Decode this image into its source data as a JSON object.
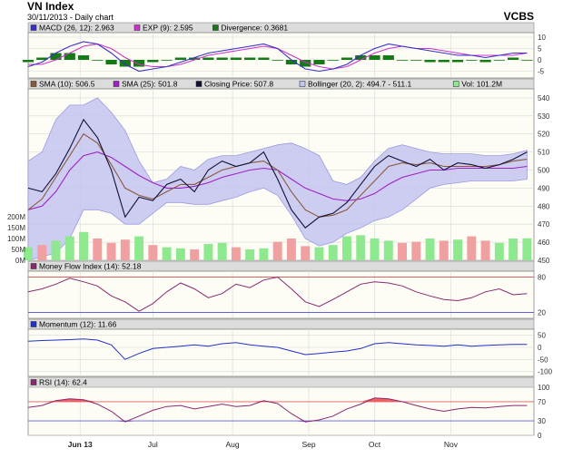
{
  "header": {
    "title": "VN Index",
    "subtitle": "30/11/2013 - Daily chart",
    "brand": "VCBS"
  },
  "colors": {
    "panel_bg": "#fdfdf5",
    "legend_bg": "#dcdcdc",
    "grid": "#d8d8d8",
    "macd": "#3a2fc8",
    "exp": "#cc33cc",
    "divergence": "#147a14",
    "sma10": "#8a5a3c",
    "sma25": "#a020c8",
    "price": "#101038",
    "bollinger_fill": "#c4c4f0",
    "bollinger_edge": "#9a9ae0",
    "vol_up": "#8ee88e",
    "vol_down": "#f0a0a0",
    "mfi": "#8a2870",
    "mom": "#2030c8",
    "rsi": "#8a2870",
    "overbought": "#e06060",
    "oversold": "#6060e0",
    "rsi_fill_up": "#f06060",
    "rsi_fill_down": "#7050e0"
  },
  "x_axis": {
    "labels": [
      {
        "text": "Jun 13",
        "day": 15,
        "bold": true
      },
      {
        "text": "Jul",
        "day": 36,
        "bold": false
      },
      {
        "text": "Aug",
        "day": 59,
        "bold": false
      },
      {
        "text": "Sep",
        "day": 81,
        "bold": false
      },
      {
        "text": "Oct",
        "day": 100,
        "bold": false
      },
      {
        "text": "Nov",
        "day": 122,
        "bold": false
      }
    ]
  },
  "chart_data": [
    {
      "type": "line",
      "id": "macd",
      "legend": [
        {
          "label": "MACD (26, 12): 2.963",
          "color": "#3a2fc8"
        },
        {
          "label": "EXP (9): 2.595",
          "color": "#cc33cc"
        },
        {
          "label": "Divergence: 0.3681",
          "color": "#147a14"
        }
      ],
      "ylim": [
        -8,
        12
      ],
      "yticks": [
        10,
        5,
        0,
        -5
      ],
      "x_days": [
        0,
        4,
        8,
        12,
        16,
        20,
        24,
        28,
        32,
        36,
        40,
        44,
        48,
        52,
        56,
        60,
        64,
        68,
        72,
        76,
        80,
        84,
        88,
        92,
        96,
        100,
        104,
        108,
        112,
        116,
        120,
        124,
        128,
        132,
        136,
        140,
        144
      ],
      "series": [
        {
          "name": "MACD (26, 12)",
          "values": [
            -3,
            -1,
            3,
            6,
            8,
            7,
            3,
            -2,
            -5,
            -4,
            -3,
            -1,
            1,
            3,
            4,
            5,
            6,
            7,
            5,
            0,
            -4,
            -5,
            -4,
            -2,
            2,
            5,
            7,
            6,
            5,
            4,
            3,
            2,
            2,
            1,
            2,
            3,
            3
          ]
        },
        {
          "name": "EXP (9)",
          "values": [
            -2,
            -2,
            0,
            3,
            6,
            7,
            5,
            1,
            -2,
            -3,
            -3,
            -2,
            0,
            2,
            3,
            4,
            5,
            6,
            5,
            2,
            -1,
            -3,
            -4,
            -3,
            0,
            3,
            5,
            6,
            5,
            5,
            4,
            3,
            2,
            2,
            2,
            2,
            3
          ]
        },
        {
          "name": "Divergence",
          "values": [
            -1,
            1,
            3,
            3,
            2,
            0,
            -2,
            -3,
            -3,
            -1,
            0,
            1,
            1,
            1,
            1,
            1,
            1,
            1,
            0,
            -2,
            -3,
            -2,
            0,
            1,
            2,
            2,
            2,
            0,
            0,
            -1,
            -1,
            -1,
            0,
            -1,
            0,
            1,
            0
          ]
        }
      ]
    },
    {
      "type": "line",
      "id": "price",
      "legend": [
        {
          "label": "SMA (10): 506.5",
          "color": "#8a5a3c"
        },
        {
          "label": "SMA (25): 501.8",
          "color": "#a020c8"
        },
        {
          "label": "Closing Price: 507.8",
          "color": "#101038"
        },
        {
          "label": "Bollinger (20, 2): 494.7 - 511.1",
          "color": "#c4c4f0"
        },
        {
          "label": "Vol: 101.2M",
          "color": "#8ee88e"
        }
      ],
      "ylim": [
        450,
        545
      ],
      "yticks": [
        540,
        530,
        520,
        510,
        500,
        490,
        480,
        470,
        460,
        450
      ],
      "volume_ticks": [
        "200M",
        "150M",
        "100M",
        "50M",
        "0M"
      ],
      "volume_max": 250,
      "x_days": [
        0,
        4,
        8,
        12,
        16,
        20,
        24,
        28,
        32,
        36,
        40,
        44,
        48,
        52,
        56,
        60,
        64,
        68,
        72,
        76,
        80,
        84,
        88,
        92,
        96,
        100,
        104,
        108,
        112,
        116,
        120,
        124,
        128,
        132,
        136,
        140,
        144
      ],
      "series": [
        {
          "name": "Closing Price",
          "values": [
            490,
            488,
            498,
            512,
            528,
            518,
            500,
            474,
            485,
            483,
            492,
            495,
            488,
            500,
            505,
            502,
            504,
            510,
            495,
            478,
            468,
            474,
            476,
            482,
            492,
            502,
            508,
            505,
            502,
            506,
            500,
            504,
            503,
            501,
            503,
            506,
            510
          ]
        },
        {
          "name": "SMA (10)",
          "values": [
            478,
            484,
            496,
            508,
            520,
            515,
            503,
            490,
            486,
            484,
            488,
            492,
            492,
            496,
            500,
            502,
            504,
            505,
            500,
            488,
            478,
            474,
            475,
            478,
            486,
            494,
            502,
            504,
            503,
            504,
            502,
            502,
            502,
            502,
            503,
            505,
            506
          ]
        },
        {
          "name": "SMA (25)",
          "values": [
            478,
            480,
            488,
            500,
            508,
            510,
            507,
            502,
            497,
            493,
            490,
            490,
            491,
            493,
            496,
            498,
            500,
            501,
            500,
            495,
            490,
            487,
            484,
            483,
            484,
            487,
            492,
            496,
            498,
            500,
            500,
            501,
            501,
            501,
            501,
            501,
            502
          ]
        },
        {
          "name": "Bollinger Upper",
          "values": [
            505,
            510,
            528,
            536,
            536,
            540,
            532,
            522,
            505,
            493,
            495,
            502,
            500,
            506,
            508,
            508,
            510,
            512,
            514,
            515,
            512,
            508,
            494,
            492,
            496,
            505,
            512,
            514,
            512,
            510,
            509,
            509,
            509,
            508,
            508,
            509,
            511
          ]
        },
        {
          "name": "Bollinger Lower",
          "values": [
            450,
            452,
            454,
            462,
            478,
            478,
            476,
            470,
            470,
            476,
            482,
            482,
            481,
            481,
            483,
            485,
            488,
            490,
            486,
            475,
            462,
            458,
            460,
            465,
            468,
            472,
            474,
            478,
            484,
            490,
            492,
            493,
            494,
            494,
            494,
            494,
            495
          ]
        },
        {
          "name": "Vol",
          "values": [
            60,
            70,
            90,
            110,
            130,
            100,
            80,
            95,
            110,
            70,
            60,
            55,
            50,
            75,
            80,
            60,
            50,
            55,
            85,
            100,
            65,
            60,
            70,
            110,
            115,
            100,
            90,
            80,
            85,
            100,
            90,
            95,
            110,
            90,
            80,
            100,
            101
          ]
        }
      ]
    },
    {
      "type": "line",
      "id": "mfi",
      "legend": [
        {
          "label": "Money Flow Index (14): 52.18",
          "color": "#8a2870"
        }
      ],
      "ylim": [
        10,
        90
      ],
      "yticks": [
        80,
        20
      ],
      "ref_lines": [
        80,
        20
      ],
      "x_days": [
        0,
        4,
        8,
        12,
        16,
        20,
        24,
        28,
        32,
        36,
        40,
        44,
        48,
        52,
        56,
        60,
        64,
        68,
        72,
        76,
        80,
        84,
        88,
        92,
        96,
        100,
        104,
        108,
        112,
        116,
        120,
        124,
        128,
        132,
        136,
        140,
        144
      ],
      "series": [
        {
          "name": "Money Flow Index (14)",
          "values": [
            55,
            60,
            68,
            78,
            72,
            65,
            48,
            38,
            22,
            35,
            55,
            70,
            60,
            45,
            52,
            68,
            62,
            75,
            80,
            60,
            38,
            30,
            42,
            55,
            68,
            72,
            70,
            65,
            55,
            48,
            42,
            40,
            45,
            55,
            60,
            50,
            52
          ]
        }
      ]
    },
    {
      "type": "line",
      "id": "momentum",
      "legend": [
        {
          "label": "Momentum (12): 11.66",
          "color": "#2030c8"
        }
      ],
      "ylim": [
        -120,
        75
      ],
      "yticks": [
        50,
        0,
        -50,
        -100
      ],
      "x_days": [
        0,
        4,
        8,
        12,
        16,
        20,
        24,
        28,
        32,
        36,
        40,
        44,
        48,
        52,
        56,
        60,
        64,
        68,
        72,
        76,
        80,
        84,
        88,
        92,
        96,
        100,
        104,
        108,
        112,
        116,
        120,
        124,
        128,
        132,
        136,
        140,
        144
      ],
      "series": [
        {
          "name": "Momentum (12)",
          "values": [
            25,
            28,
            30,
            32,
            35,
            30,
            10,
            -50,
            -25,
            -5,
            0,
            5,
            10,
            5,
            15,
            20,
            10,
            5,
            0,
            -15,
            -30,
            -25,
            -20,
            -15,
            -5,
            15,
            20,
            15,
            10,
            8,
            5,
            10,
            5,
            8,
            10,
            12,
            12
          ]
        }
      ]
    },
    {
      "type": "line",
      "id": "rsi",
      "legend": [
        {
          "label": "RSI (14): 62.4",
          "color": "#8a2870"
        }
      ],
      "ylim": [
        0,
        100
      ],
      "yticks": [
        100,
        70,
        30,
        0
      ],
      "ref_lines": [
        70,
        30
      ],
      "x_days": [
        0,
        4,
        8,
        12,
        16,
        20,
        24,
        28,
        32,
        36,
        40,
        44,
        48,
        52,
        56,
        60,
        64,
        68,
        72,
        76,
        80,
        84,
        88,
        92,
        96,
        100,
        104,
        108,
        112,
        116,
        120,
        124,
        128,
        132,
        136,
        140,
        144
      ],
      "series": [
        {
          "name": "RSI (14)",
          "values": [
            58,
            62,
            72,
            76,
            74,
            65,
            50,
            28,
            40,
            52,
            60,
            62,
            55,
            60,
            65,
            60,
            62,
            72,
            66,
            45,
            28,
            32,
            40,
            55,
            65,
            78,
            76,
            70,
            62,
            55,
            50,
            55,
            58,
            57,
            60,
            62,
            62
          ]
        }
      ]
    }
  ]
}
